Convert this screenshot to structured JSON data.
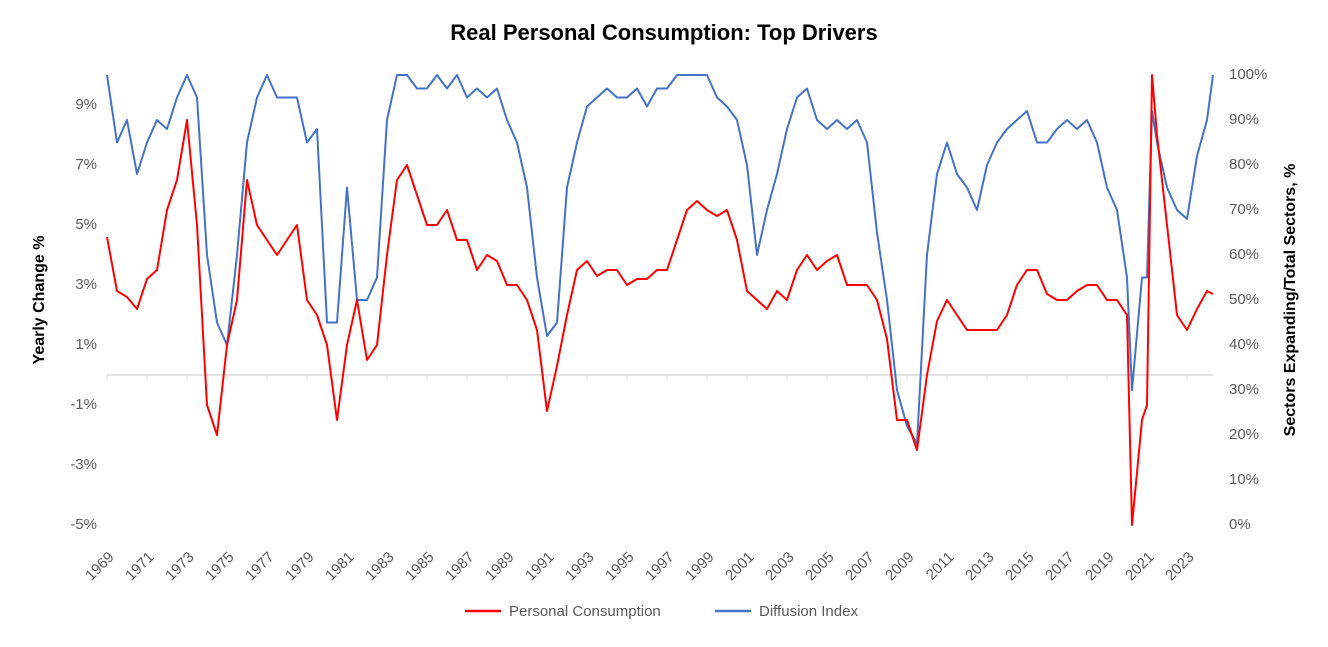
{
  "chart_data": {
    "type": "line",
    "title": "Real Personal Consumption: Top Drivers",
    "y_label": "Yearly Change %",
    "y2_label": "Sectors Expanding/Total Sectors, %",
    "xlim": [
      1969,
      2024.3
    ],
    "xticks": [
      1969,
      1971,
      1973,
      1975,
      1977,
      1979,
      1981,
      1983,
      1985,
      1987,
      1989,
      1991,
      1993,
      1995,
      1997,
      1999,
      2001,
      2003,
      2005,
      2007,
      2009,
      2011,
      2013,
      2015,
      2017,
      2019,
      2021,
      2023
    ],
    "ylim": [
      -5,
      10
    ],
    "yticks": [
      {
        "value": -5,
        "label": "-5%"
      },
      {
        "value": -3,
        "label": "-3%"
      },
      {
        "value": -1,
        "label": "-1%"
      },
      {
        "value": 1,
        "label": "1%"
      },
      {
        "value": 3,
        "label": "3%"
      },
      {
        "value": 5,
        "label": "5%"
      },
      {
        "value": 7,
        "label": "7%"
      },
      {
        "value": 9,
        "label": "9%"
      }
    ],
    "y2lim": [
      0,
      100
    ],
    "y2ticks": [
      {
        "value": 0,
        "label": "0%"
      },
      {
        "value": 10,
        "label": "10%"
      },
      {
        "value": 20,
        "label": "20%"
      },
      {
        "value": 30,
        "label": "30%"
      },
      {
        "value": 40,
        "label": "40%"
      },
      {
        "value": 50,
        "label": "50%"
      },
      {
        "value": 60,
        "label": "60%"
      },
      {
        "value": 70,
        "label": "70%"
      },
      {
        "value": 80,
        "label": "80%"
      },
      {
        "value": 90,
        "label": "90%"
      },
      {
        "value": 100,
        "label": "100%"
      }
    ],
    "legend": "bottom",
    "x": [
      1969,
      1969.5,
      1970,
      1970.5,
      1971,
      1971.5,
      1972,
      1972.5,
      1973,
      1973.5,
      1974,
      1974.5,
      1975,
      1975.5,
      1976,
      1976.5,
      1977,
      1977.5,
      1978,
      1978.5,
      1979,
      1979.5,
      1980,
      1980.5,
      1981,
      1981.5,
      1982,
      1982.5,
      1983,
      1983.5,
      1984,
      1984.5,
      1985,
      1985.5,
      1986,
      1986.5,
      1987,
      1987.5,
      1988,
      1988.5,
      1989,
      1989.5,
      1990,
      1990.5,
      1991,
      1991.5,
      1992,
      1992.5,
      1993,
      1993.5,
      1994,
      1994.5,
      1995,
      1995.5,
      1996,
      1996.5,
      1997,
      1997.5,
      1998,
      1998.5,
      1999,
      1999.5,
      2000,
      2000.5,
      2001,
      2001.5,
      2002,
      2002.5,
      2003,
      2003.5,
      2004,
      2004.5,
      2005,
      2005.5,
      2006,
      2006.5,
      2007,
      2007.5,
      2008,
      2008.5,
      2009,
      2009.5,
      2010,
      2010.5,
      2011,
      2011.5,
      2012,
      2012.5,
      2013,
      2013.5,
      2014,
      2014.5,
      2015,
      2015.5,
      2016,
      2016.5,
      2017,
      2017.5,
      2018,
      2018.5,
      2019,
      2019.5,
      2020,
      2020.25,
      2020.75,
      2021,
      2021.25,
      2021.5,
      2022,
      2022.5,
      2023,
      2023.5,
      2024,
      2024.3
    ],
    "series": [
      {
        "name": "Personal Consumption",
        "color": "#ff0000",
        "values": [
          4.6,
          2.8,
          2.6,
          2.2,
          3.2,
          3.5,
          5.5,
          6.5,
          8.5,
          5,
          -1,
          -2,
          1,
          2.5,
          6.5,
          5,
          4.5,
          4,
          4.5,
          5,
          2.5,
          2,
          1,
          -1.5,
          1,
          2.5,
          0.5,
          1,
          4,
          6.5,
          7,
          6,
          5,
          5,
          5.5,
          4.5,
          4.5,
          3.5,
          4,
          3.8,
          3,
          3,
          2.5,
          1.5,
          -1.2,
          0.3,
          2,
          3.5,
          3.8,
          3.3,
          3.5,
          3.5,
          3,
          3.2,
          3.2,
          3.5,
          3.5,
          4.5,
          5.5,
          5.8,
          5.5,
          5.3,
          5.5,
          4.5,
          2.8,
          2.5,
          2.2,
          2.8,
          2.5,
          3.5,
          4,
          3.5,
          3.8,
          4,
          3,
          3,
          3,
          2.5,
          1.2,
          -1.5,
          -1.5,
          -2.5,
          0,
          1.8,
          2.5,
          2,
          1.5,
          1.5,
          1.5,
          1.5,
          2,
          3,
          3.5,
          3.5,
          2.7,
          2.5,
          2.5,
          2.8,
          3,
          3,
          2.5,
          2.5,
          2,
          -5,
          -1.5,
          -1,
          10,
          8,
          5,
          2,
          1.5,
          2.2,
          2.8,
          2.7
        ]
      },
      {
        "name": "Diffusion Index",
        "color": "#4472c4",
        "axis": "y2",
        "values": [
          100,
          85,
          90,
          78,
          85,
          90,
          88,
          95,
          100,
          95,
          60,
          45,
          40,
          60,
          85,
          95,
          100,
          95,
          95,
          95,
          85,
          88,
          45,
          45,
          75,
          50,
          50,
          55,
          90,
          100,
          100,
          97,
          97,
          100,
          97,
          100,
          95,
          97,
          95,
          97,
          90,
          85,
          75,
          55,
          42,
          45,
          75,
          85,
          93,
          95,
          97,
          95,
          95,
          97,
          93,
          97,
          97,
          100,
          100,
          100,
          100,
          95,
          93,
          90,
          80,
          60,
          70,
          78,
          88,
          95,
          97,
          90,
          88,
          90,
          88,
          90,
          85,
          65,
          50,
          30,
          22,
          18,
          60,
          78,
          85,
          78,
          75,
          70,
          80,
          85,
          88,
          90,
          92,
          85,
          85,
          88,
          90,
          88,
          90,
          85,
          75,
          70,
          55,
          30,
          55,
          55,
          92,
          85,
          75,
          70,
          68,
          82,
          90,
          100
        ]
      }
    ]
  }
}
